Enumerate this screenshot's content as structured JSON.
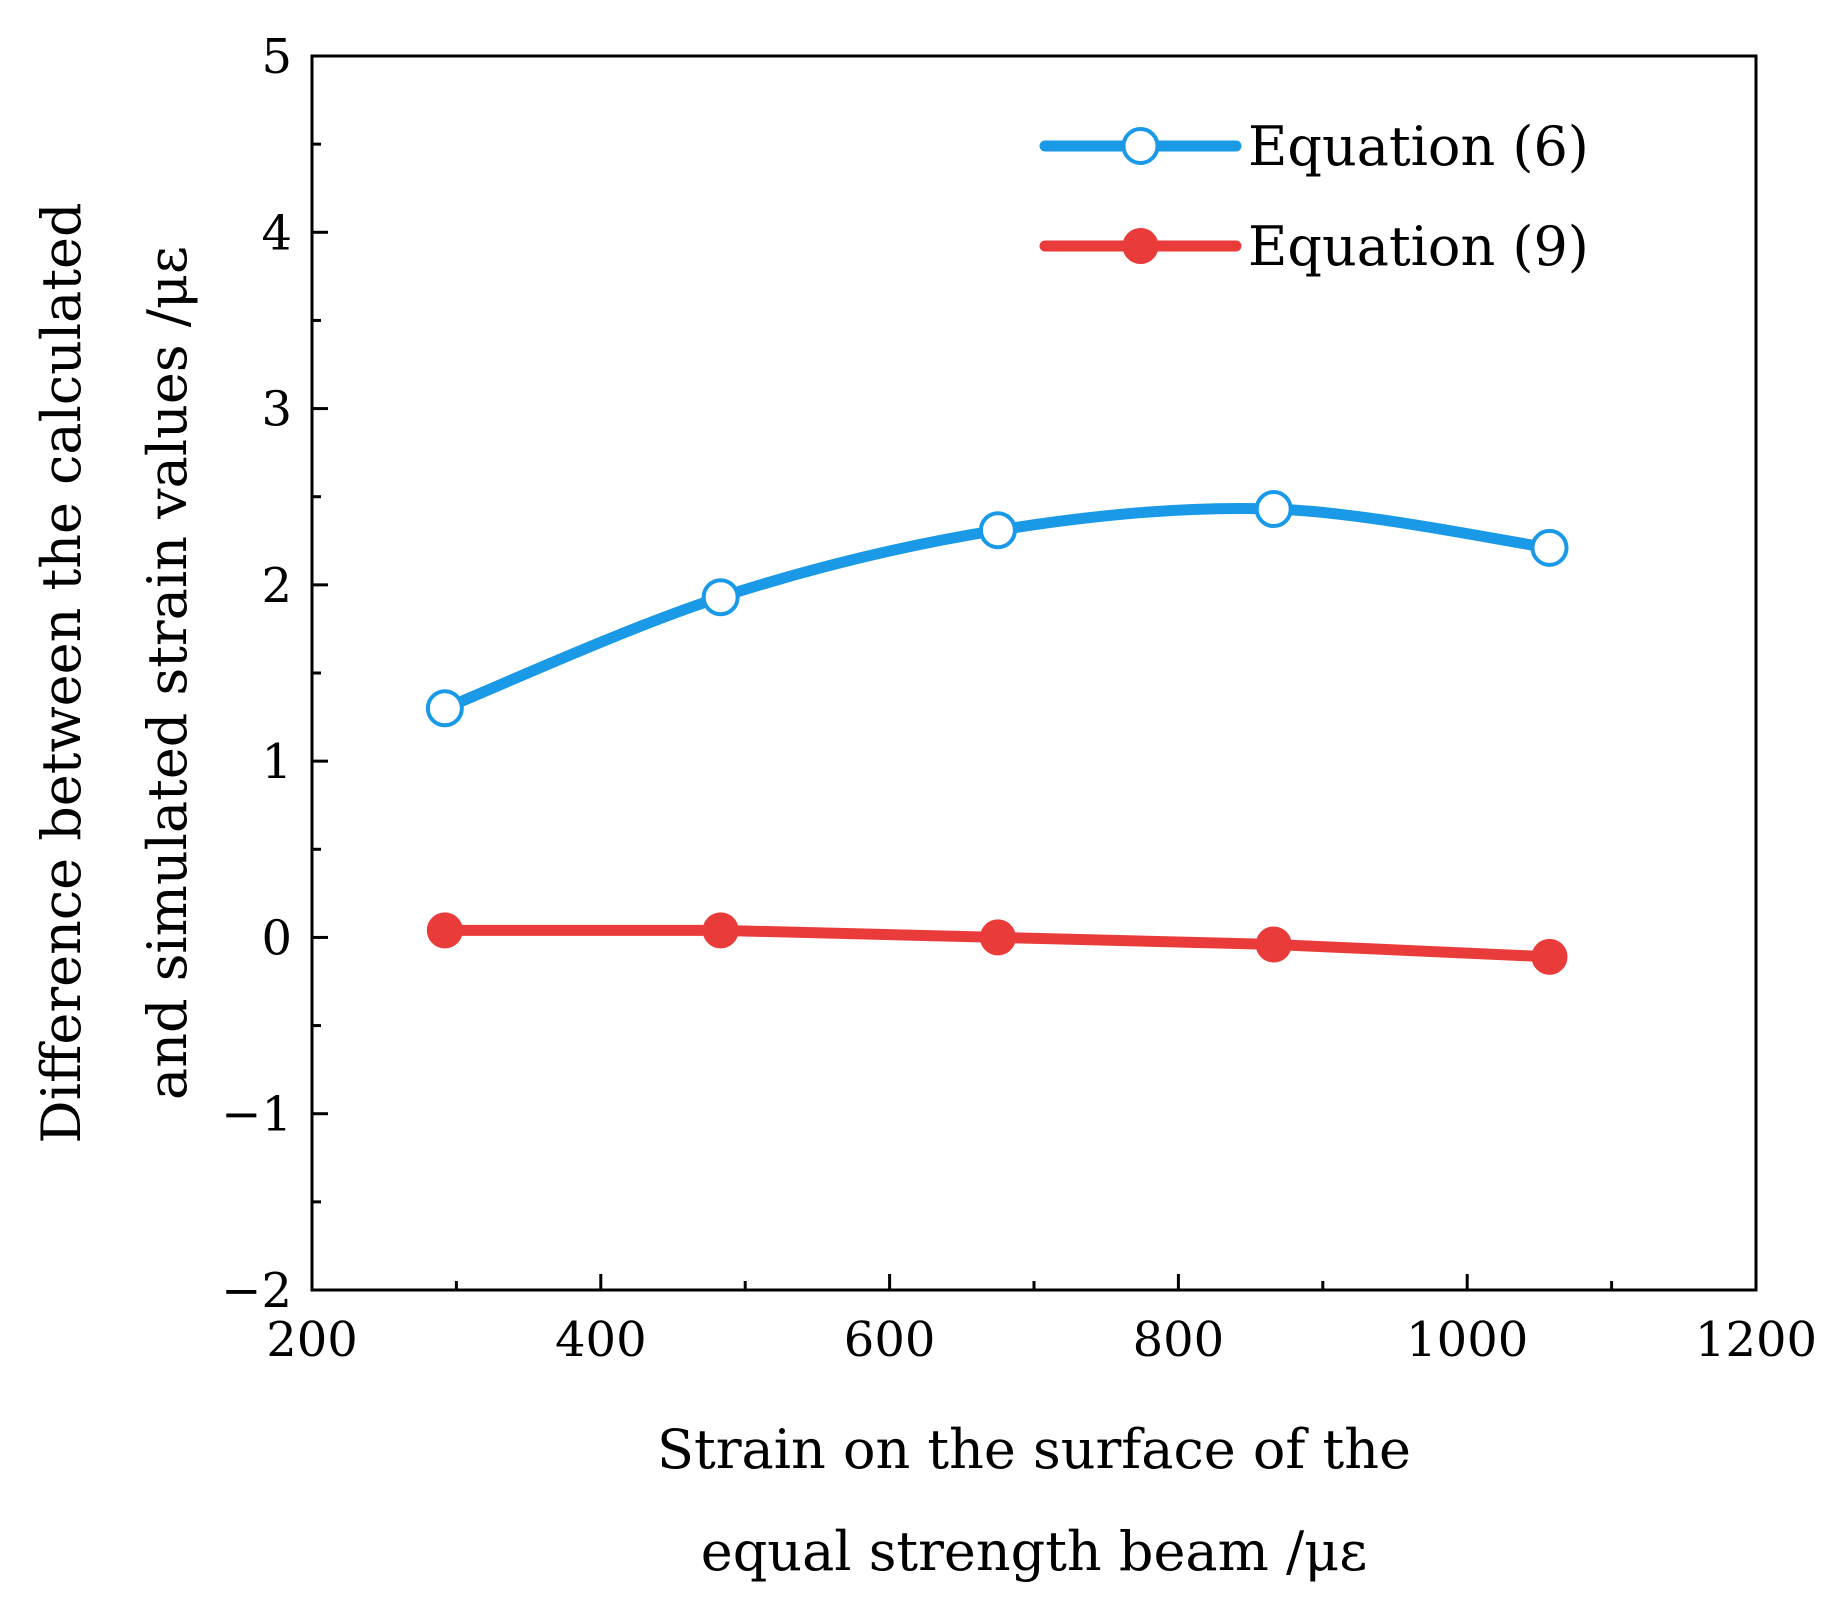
{
  "chart_data": {
    "type": "line",
    "title": "",
    "xlabel": [
      "Strain on the surface of the",
      "equal strength beam /με"
    ],
    "ylabel": [
      "Difference between the calculated",
      "and simulated strain values /με"
    ],
    "xlim": [
      200,
      1200
    ],
    "ylim": [
      -2,
      5
    ],
    "xticks": [
      200,
      400,
      600,
      800,
      1000,
      1200
    ],
    "xtick_labels": [
      "200",
      "400",
      "600",
      "800",
      "1000",
      "1200"
    ],
    "xminor": [
      300,
      500,
      700,
      900,
      1100
    ],
    "yticks": [
      -2,
      -1,
      0,
      1,
      2,
      3,
      4,
      5
    ],
    "ytick_labels": [
      "−2",
      "−1",
      "0",
      "1",
      "2",
      "3",
      "4",
      "5"
    ],
    "yminor": [
      -1.5,
      -0.5,
      0.5,
      1.5,
      2.5,
      3.5,
      4.5
    ],
    "grid": false,
    "legend_position": "top-right",
    "series": [
      {
        "name": "Equation (6)",
        "color": "#1a9ae6",
        "marker": "open-circle",
        "x": [
          292,
          483,
          675,
          866,
          1057
        ],
        "y": [
          1.3,
          1.93,
          2.31,
          2.43,
          2.21
        ]
      },
      {
        "name": "Equation (9)",
        "color": "#ea3b3b",
        "marker": "filled-circle",
        "x": [
          292,
          483,
          675,
          866,
          1057
        ],
        "y": [
          0.04,
          0.04,
          0.0,
          -0.04,
          -0.11
        ]
      }
    ]
  }
}
